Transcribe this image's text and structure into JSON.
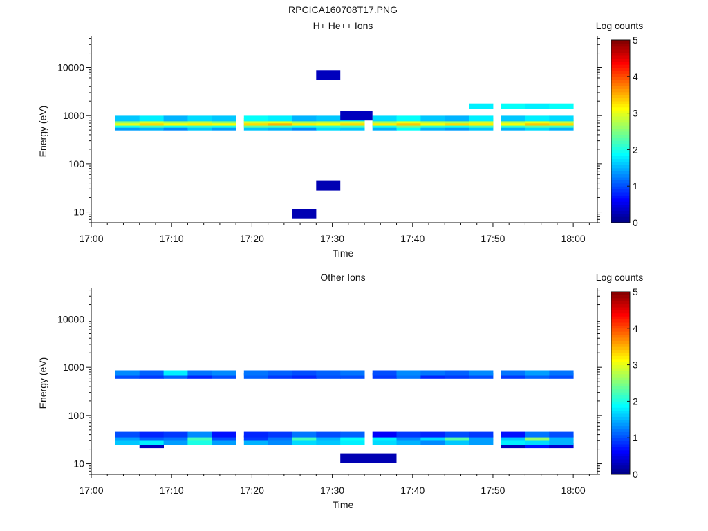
{
  "figure_title": "RPCICA160708T17.PNG",
  "chart_data": [
    {
      "type": "heatmap",
      "title": "H+ He++ Ions",
      "xlabel": "Time",
      "ylabel": "Energy (eV)",
      "yscale": "log",
      "xlim": [
        "17:00",
        "18:03"
      ],
      "ylim": [
        6,
        45000
      ],
      "xticks": [
        "17:00",
        "17:10",
        "17:20",
        "17:30",
        "17:40",
        "17:50",
        "18:00"
      ],
      "yticks": [
        "10",
        "100",
        "1000",
        "10000"
      ],
      "colorbar": {
        "label": "Log counts",
        "range": [
          0,
          5
        ],
        "ticks": [
          "0",
          "1",
          "2",
          "3",
          "4",
          "5"
        ]
      },
      "time_bins": [
        "17:03",
        "17:06",
        "17:09",
        "17:12",
        "17:15",
        "17:19",
        "17:22",
        "17:25",
        "17:28",
        "17:31",
        "17:35",
        "17:38",
        "17:41",
        "17:44",
        "17:47",
        "17:51",
        "17:54",
        "17:57"
      ],
      "bands": [
        {
          "energy": 560,
          "values": [
            1.4,
            1.5,
            1.3,
            1.6,
            1.4,
            1.6,
            1.5,
            1.3,
            1.7,
            1.6,
            1.5,
            1.9,
            1.5,
            1.4,
            1.6,
            1.5,
            1.7,
            1.5
          ]
        },
        {
          "energy": 640,
          "values": [
            2.0,
            2.2,
            2.0,
            2.1,
            2.0,
            2.3,
            2.2,
            2.0,
            2.1,
            2.2,
            2.0,
            2.4,
            2.1,
            2.0,
            2.2,
            2.1,
            2.3,
            2.2
          ]
        },
        {
          "energy": 710,
          "values": [
            3.0,
            3.3,
            3.1,
            3.2,
            3.1,
            3.3,
            3.5,
            3.2,
            3.1,
            3.3,
            3.2,
            3.4,
            3.1,
            3.3,
            3.2,
            3.1,
            3.4,
            3.3
          ]
        },
        {
          "energy": 790,
          "values": [
            2.6,
            2.9,
            2.7,
            2.8,
            2.6,
            2.9,
            3.0,
            2.7,
            2.8,
            2.9,
            2.7,
            3.0,
            2.8,
            2.7,
            2.9,
            2.8,
            3.0,
            2.8
          ]
        },
        {
          "energy": 870,
          "values": [
            1.6,
            1.8,
            1.5,
            1.7,
            1.6,
            1.9,
            1.8,
            1.5,
            1.6,
            1.8,
            1.7,
            1.9,
            1.6,
            1.5,
            1.8,
            1.6,
            1.8,
            1.7
          ]
        },
        {
          "energy": 1560,
          "values": [
            null,
            null,
            null,
            null,
            null,
            null,
            null,
            null,
            null,
            null,
            null,
            null,
            null,
            null,
            1.8,
            1.9,
            1.8,
            1.9
          ]
        }
      ],
      "blocks": [
        {
          "t0": "17:25",
          "t1": "17:28",
          "energy": 9,
          "value": 0.25
        },
        {
          "t0": "17:28",
          "t1": "17:31",
          "energy": 35,
          "value": 0.25
        },
        {
          "t0": "17:31",
          "t1": "17:35",
          "energy": 1000,
          "value": 0.3
        },
        {
          "t0": "17:28",
          "t1": "17:31",
          "energy": 7000,
          "value": 0.3
        }
      ]
    },
    {
      "type": "heatmap",
      "title": "Other Ions",
      "xlabel": "Time",
      "ylabel": "Energy (eV)",
      "yscale": "log",
      "xlim": [
        "17:00",
        "18:03"
      ],
      "ylim": [
        6,
        45000
      ],
      "xticks": [
        "17:00",
        "17:10",
        "17:20",
        "17:30",
        "17:40",
        "17:50",
        "18:00"
      ],
      "yticks": [
        "10",
        "100",
        "1000",
        "10000"
      ],
      "colorbar": {
        "label": "Log counts",
        "range": [
          0,
          5
        ],
        "ticks": [
          "0",
          "1",
          "2",
          "3",
          "4",
          "5"
        ]
      },
      "time_bins": [
        "17:03",
        "17:06",
        "17:09",
        "17:12",
        "17:15",
        "17:19",
        "17:22",
        "17:25",
        "17:28",
        "17:31",
        "17:35",
        "17:38",
        "17:41",
        "17:44",
        "17:47",
        "17:51",
        "17:54",
        "17:57"
      ],
      "bands": [
        {
          "energy": 24,
          "values": [
            null,
            0.3,
            null,
            null,
            null,
            null,
            null,
            null,
            null,
            null,
            null,
            null,
            null,
            null,
            null,
            0.3,
            0.7,
            0.4
          ]
        },
        {
          "energy": 28,
          "values": [
            1.6,
            1.8,
            1.4,
            2.0,
            1.4,
            1.5,
            1.3,
            1.7,
            1.6,
            1.8,
            1.7,
            1.5,
            1.3,
            1.6,
            1.4,
            1.8,
            1.7,
            1.5
          ]
        },
        {
          "energy": 34,
          "values": [
            1.4,
            1.1,
            1.2,
            2.2,
            1.0,
            0.9,
            1.2,
            2.2,
            1.5,
            1.9,
            1.8,
            1.3,
            1.7,
            2.3,
            1.4,
            1.6,
            2.6,
            1.5
          ]
        },
        {
          "energy": 40,
          "values": [
            1.0,
            0.8,
            0.9,
            1.3,
            0.7,
            0.8,
            0.9,
            1.2,
            1.0,
            1.1,
            0.6,
            0.9,
            0.8,
            1.0,
            0.9,
            0.7,
            1.2,
            1.0
          ]
        },
        {
          "energy": 660,
          "values": [
            1.0,
            0.9,
            1.1,
            0.8,
            1.0,
            1.1,
            0.9,
            0.8,
            1.0,
            1.0,
            0.9,
            1.2,
            0.8,
            0.9,
            1.0,
            0.9,
            1.1,
            1.0
          ]
        },
        {
          "energy": 760,
          "values": [
            1.3,
            1.1,
            1.8,
            1.2,
            1.3,
            1.2,
            1.1,
            1.0,
            1.1,
            1.2,
            1.0,
            1.3,
            1.2,
            1.1,
            1.3,
            1.2,
            1.4,
            1.2
          ]
        }
      ],
      "blocks": [
        {
          "t0": "17:31",
          "t1": "17:38",
          "energy": 13,
          "value": 0.25
        }
      ]
    }
  ],
  "colors": {
    "axis": "#111111",
    "background": "#ffffff"
  }
}
